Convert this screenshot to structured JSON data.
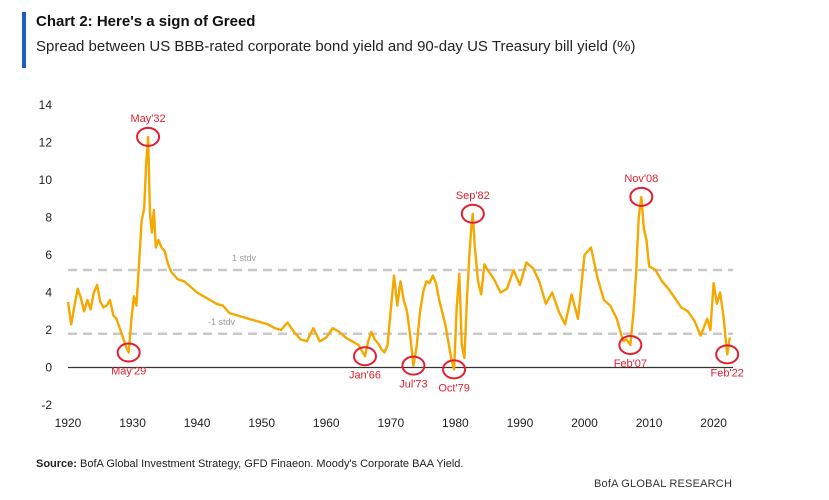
{
  "header": {
    "title": "Chart 2: Here's a sign of Greed",
    "subtitle": "Spread between US BBB-rated corporate bond yield and 90-day US Treasury bill yield (%)"
  },
  "footer": {
    "source_label": "Source:",
    "source_text": " BofA Global Investment Strategy, GFD Finaeon. Moody's Corporate BAA Yield.",
    "brand": "BofA GLOBAL RESEARCH"
  },
  "colors": {
    "series": "#f5a800",
    "annotation": "#e0202f",
    "band": "#c8c8c8",
    "zero_line": "#333333",
    "accent": "#1f5fbf"
  },
  "chart_data": {
    "type": "line",
    "xlim": [
      1920,
      2023
    ],
    "ylim": [
      -2,
      14
    ],
    "xticks": [
      1920,
      1930,
      1940,
      1950,
      1960,
      1970,
      1980,
      1990,
      2000,
      2010,
      2020
    ],
    "yticks": [
      -2,
      0,
      2,
      4,
      6,
      8,
      10,
      12,
      14
    ],
    "bands": [
      {
        "label": "1 stdv",
        "value": 5.2
      },
      {
        "label": "-1 stdv",
        "value": 1.8
      }
    ],
    "annotations": [
      {
        "label": "May'32",
        "x": 1932.4,
        "y": 12.3,
        "label_pos": "above"
      },
      {
        "label": "May'29",
        "x": 1929.4,
        "y": 0.8,
        "label_pos": "below"
      },
      {
        "label": "Jan'66",
        "x": 1966.0,
        "y": 0.6,
        "label_pos": "below"
      },
      {
        "label": "Jul'73",
        "x": 1973.5,
        "y": 0.1,
        "label_pos": "below"
      },
      {
        "label": "Oct'79",
        "x": 1979.8,
        "y": -0.1,
        "label_pos": "below"
      },
      {
        "label": "Sep'82",
        "x": 1982.7,
        "y": 8.2,
        "label_pos": "above"
      },
      {
        "label": "Feb'07",
        "x": 2007.1,
        "y": 1.2,
        "label_pos": "below"
      },
      {
        "label": "Nov'08",
        "x": 2008.8,
        "y": 9.1,
        "label_pos": "above"
      },
      {
        "label": "Feb'22",
        "x": 2022.1,
        "y": 0.7,
        "label_pos": "below"
      }
    ],
    "series": [
      {
        "x": [
          1920,
          1920.5,
          1921,
          1921.5,
          1922,
          1922.5,
          1923,
          1923.5,
          1924,
          1924.5,
          1925,
          1925.5,
          1926,
          1926.5,
          1927,
          1927.5,
          1928,
          1928.5,
          1929,
          1929.4,
          1929.8,
          1930.2,
          1930.6,
          1931,
          1931.4,
          1931.8,
          1932.1,
          1932.4,
          1932.7,
          1933,
          1933.3,
          1933.6,
          1934,
          1934.5,
          1935,
          1935.5,
          1936,
          1937,
          1938,
          1939,
          1940,
          1941,
          1942,
          1943,
          1944,
          1945,
          1946,
          1947,
          1948,
          1949,
          1950,
          1951,
          1952,
          1953,
          1954,
          1955,
          1956,
          1957,
          1958,
          1959,
          1960,
          1961,
          1962,
          1963,
          1964,
          1965,
          1966,
          1966.5,
          1967,
          1967.5,
          1968,
          1968.5,
          1969,
          1969.5,
          1970,
          1970.5,
          1971,
          1971.5,
          1972,
          1972.5,
          1973,
          1973.5,
          1974,
          1974.5,
          1975,
          1975.5,
          1976,
          1976.5,
          1977,
          1977.5,
          1978,
          1978.5,
          1979,
          1979.4,
          1979.8,
          1980.2,
          1980.6,
          1981,
          1981.4,
          1981.8,
          1982.2,
          1982.5,
          1982.7,
          1983,
          1983.5,
          1984,
          1984.5,
          1985,
          1986,
          1987,
          1988,
          1989,
          1990,
          1991,
          1992,
          1993,
          1994,
          1995,
          1996,
          1997,
          1998,
          1999,
          2000,
          2001,
          2002,
          2003,
          2004,
          2005,
          2006,
          2006.5,
          2007.1,
          2007.6,
          2008,
          2008.4,
          2008.8,
          2009.2,
          2009.6,
          2010,
          2011,
          2012,
          2013,
          2014,
          2015,
          2016,
          2017,
          2018,
          2019,
          2019.5,
          2020,
          2020.5,
          2021,
          2021.5,
          2022.1,
          2022.5
        ],
        "y": [
          3.5,
          2.3,
          3.3,
          4.2,
          3.7,
          3.0,
          3.6,
          3.1,
          4.0,
          4.4,
          3.5,
          3.2,
          3.3,
          3.6,
          2.8,
          2.6,
          2.1,
          1.6,
          1.1,
          0.8,
          2.5,
          3.8,
          3.3,
          5.5,
          7.8,
          8.5,
          10.8,
          12.3,
          8.2,
          7.2,
          8.4,
          6.4,
          6.8,
          6.4,
          6.2,
          5.5,
          5.1,
          4.7,
          4.6,
          4.3,
          4.0,
          3.8,
          3.6,
          3.4,
          3.3,
          2.9,
          2.8,
          2.7,
          2.6,
          2.5,
          2.4,
          2.3,
          2.1,
          2.0,
          2.4,
          1.9,
          1.5,
          1.4,
          2.1,
          1.4,
          1.6,
          2.1,
          1.9,
          1.6,
          1.4,
          1.2,
          0.6,
          1.4,
          1.9,
          1.5,
          1.3,
          1.0,
          0.8,
          1.2,
          3.1,
          4.9,
          3.3,
          4.6,
          3.6,
          3.0,
          1.7,
          0.1,
          1.1,
          2.9,
          4.0,
          4.6,
          4.5,
          4.9,
          4.5,
          3.6,
          2.9,
          2.2,
          1.2,
          0.4,
          -0.1,
          3.2,
          5.0,
          1.2,
          0.5,
          3.7,
          6.2,
          7.6,
          8.2,
          6.5,
          4.6,
          3.9,
          5.5,
          5.2,
          4.7,
          4.0,
          4.2,
          5.2,
          4.4,
          5.6,
          5.3,
          4.6,
          3.4,
          4.0,
          3.0,
          2.3,
          3.9,
          2.6,
          6.0,
          6.4,
          4.8,
          3.6,
          3.3,
          2.6,
          1.4,
          1.5,
          1.2,
          3.0,
          5.1,
          8.0,
          9.1,
          7.4,
          6.8,
          5.4,
          5.2,
          4.6,
          4.2,
          3.7,
          3.2,
          3.0,
          2.5,
          1.7,
          2.6,
          2.0,
          4.5,
          3.4,
          4.0,
          2.8,
          0.7,
          1.6
        ]
      }
    ]
  }
}
